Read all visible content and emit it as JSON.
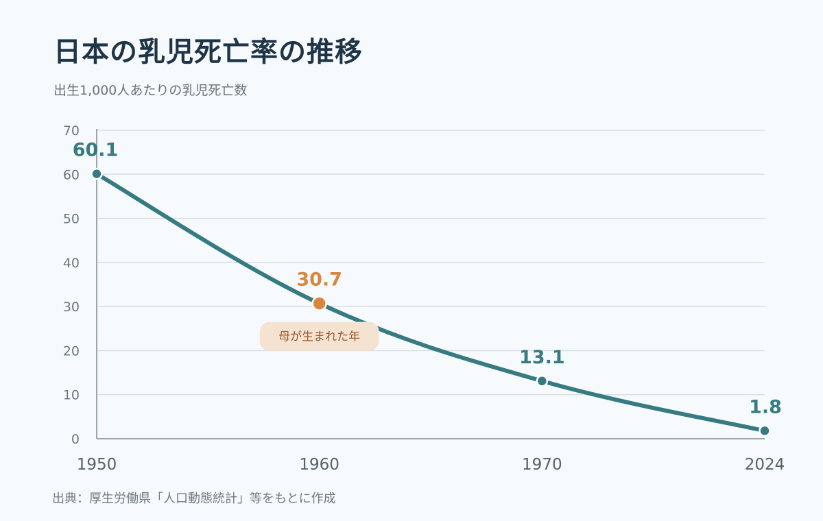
{
  "title": "日本の乳児死亡率の推移",
  "subtitle": "出生1,000人あたりの乳児死亡数",
  "source": "出典：厚生労働県「人口動態統計」等をもとに作成",
  "colors": {
    "line": "#367a82",
    "highlight": "#d9863f",
    "note_bg": "#f5e3d2",
    "grid": "#d6e0e6",
    "axis": "#7d8a94"
  },
  "chart_data": {
    "type": "line",
    "categories": [
      "1950",
      "1960",
      "1970",
      "2024"
    ],
    "values": [
      60.1,
      30.7,
      13.1,
      1.8
    ],
    "value_labels": [
      "60.1",
      "30.7",
      "13.1",
      "1.8"
    ],
    "highlight_index": 1,
    "annotation": "母が生まれた年",
    "y_ticks": [
      "0",
      "10",
      "20",
      "30",
      "40",
      "50",
      "60",
      "70"
    ],
    "ylim": [
      0,
      70
    ],
    "grid": true
  }
}
